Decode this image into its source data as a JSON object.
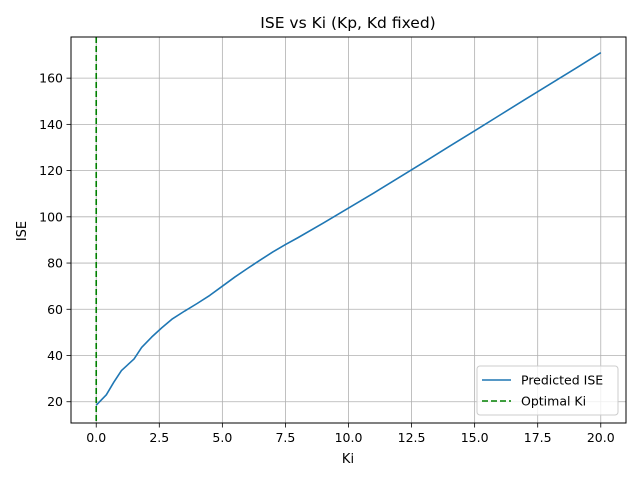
{
  "chart_data": {
    "type": "line",
    "title": "ISE vs Ki (Kp, Kd fixed)",
    "xlabel": "Ki",
    "ylabel": "ISE",
    "xlim": [
      -1.0,
      21.0
    ],
    "ylim": [
      10.8,
      177.8
    ],
    "xticks": [
      0.0,
      2.5,
      5.0,
      7.5,
      10.0,
      12.5,
      15.0,
      17.5,
      20.0
    ],
    "xtick_labels": [
      "0.0",
      "2.5",
      "5.0",
      "7.5",
      "10.0",
      "12.5",
      "15.0",
      "17.5",
      "20.0"
    ],
    "yticks": [
      20,
      40,
      60,
      80,
      100,
      120,
      140,
      160
    ],
    "ytick_labels": [
      "20",
      "40",
      "60",
      "80",
      "100",
      "120",
      "140",
      "160"
    ],
    "grid": true,
    "legend_position": "lower-right",
    "series": [
      {
        "name": "Predicted ISE",
        "color": "#1f77b4",
        "style": "solid",
        "x": [
          0.0,
          0.4,
          0.7,
          1.0,
          1.5,
          1.8,
          2.2,
          2.6,
          3.0,
          3.5,
          4.0,
          4.5,
          5.0,
          5.5,
          6.0,
          6.5,
          7.0,
          7.5,
          8.0,
          9.0,
          10.0,
          11.0,
          12.0,
          13.0,
          14.0,
          15.0,
          16.0,
          17.0,
          18.0,
          19.0,
          20.0
        ],
        "y": [
          18.5,
          23.0,
          28.5,
          33.5,
          38.5,
          43.5,
          48.0,
          52.0,
          55.7,
          59.2,
          62.5,
          66.0,
          70.0,
          74.0,
          77.7,
          81.3,
          84.8,
          88.0,
          91.0,
          97.3,
          103.8,
          110.3,
          117.0,
          123.7,
          130.5,
          137.2,
          144.0,
          150.8,
          157.5,
          164.2,
          171.0
        ]
      },
      {
        "name": "Optimal Ki",
        "color": "#008000",
        "style": "dashed",
        "vline_x": 0.0
      }
    ]
  }
}
